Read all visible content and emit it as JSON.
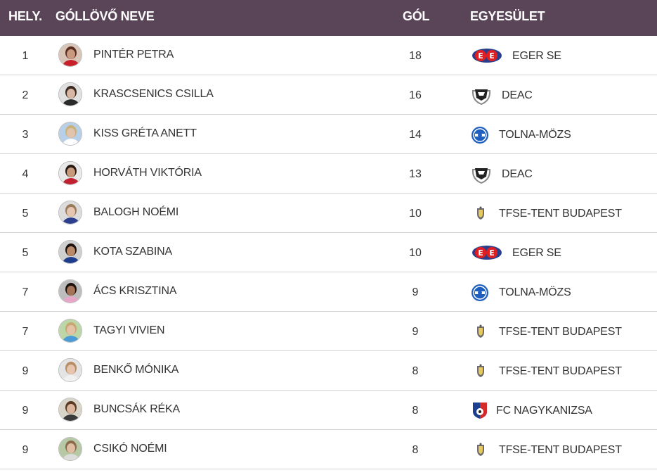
{
  "header": {
    "rank": "HELY.",
    "name": "GÓLLÖVŐ NEVE",
    "goals": "GÓL",
    "club": "EGYESÜLET"
  },
  "colors": {
    "header_bg": "#5a4558",
    "header_text": "#ffffff",
    "row_border": "#d2d2d2",
    "text": "#333333"
  },
  "rows": [
    {
      "rank": "1",
      "name": "PINTÉR PETRA",
      "goals": "18",
      "club": "EGER SE",
      "logo": "eger-se-logo"
    },
    {
      "rank": "2",
      "name": "KRASCSENICS CSILLA",
      "goals": "16",
      "club": "DEAC",
      "logo": "deac-logo"
    },
    {
      "rank": "3",
      "name": "KISS GRÉTA ANETT",
      "goals": "14",
      "club": "TOLNA-MÖZS",
      "logo": "tolna-mozs-logo"
    },
    {
      "rank": "4",
      "name": "HORVÁTH VIKTÓRIA",
      "goals": "13",
      "club": "DEAC",
      "logo": "deac-logo"
    },
    {
      "rank": "5",
      "name": "BALOGH NOÉMI",
      "goals": "10",
      "club": "TFSE-TENT BUDAPEST",
      "logo": "tfse-logo"
    },
    {
      "rank": "5",
      "name": "KOTA SZABINA",
      "goals": "10",
      "club": "EGER SE",
      "logo": "eger-se-logo"
    },
    {
      "rank": "7",
      "name": "ÁCS KRISZTINA",
      "goals": "9",
      "club": "TOLNA-MÖZS",
      "logo": "tolna-mozs-logo"
    },
    {
      "rank": "7",
      "name": "TAGYI VIVIEN",
      "goals": "9",
      "club": "TFSE-TENT BUDAPEST",
      "logo": "tfse-logo"
    },
    {
      "rank": "9",
      "name": "BENKŐ MÓNIKA",
      "goals": "8",
      "club": "TFSE-TENT BUDAPEST",
      "logo": "tfse-logo"
    },
    {
      "rank": "9",
      "name": "BUNCSÁK RÉKA",
      "goals": "8",
      "club": "FC NAGYKANIZSA",
      "logo": "fc-nagykanizsa-logo"
    },
    {
      "rank": "9",
      "name": "CSIKÓ NOÉMI",
      "goals": "8",
      "club": "TFSE-TENT BUDAPEST",
      "logo": "tfse-logo"
    }
  ]
}
